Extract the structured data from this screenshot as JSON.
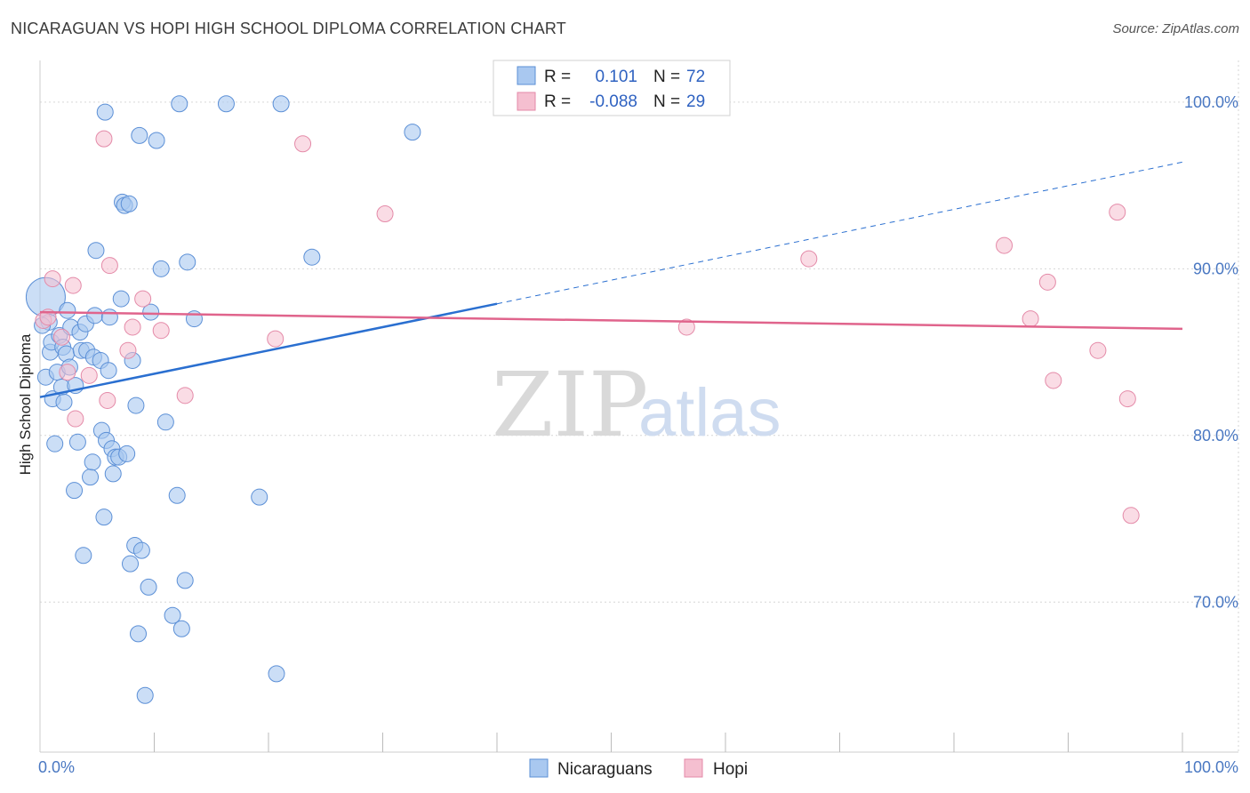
{
  "header": {
    "title": "NICARAGUAN VS HOPI HIGH SCHOOL DIPLOMA CORRELATION CHART",
    "source": "Source: ZipAtlas.com"
  },
  "watermark": {
    "zip": "ZIP",
    "atlas": "atlas"
  },
  "colors": {
    "blue_fill": "#a9c8f0",
    "blue_stroke": "#5b8fd6",
    "blue_line": "#2a6fd0",
    "pink_fill": "#f5bfd0",
    "pink_stroke": "#e48aa8",
    "pink_line": "#e0648c",
    "grid": "#d6d6d6",
    "tick_label": "#4a78c2"
  },
  "legend": {
    "rows": [
      {
        "r_label": "R = ",
        "r_value": "0.101",
        "n_label": "N = ",
        "n_value": "72"
      },
      {
        "r_label": "R = ",
        "r_value": "-0.088",
        "n_label": "N = ",
        "n_value": "29"
      }
    ]
  },
  "chart_data": {
    "type": "scatter",
    "title": "NICARAGUAN VS HOPI HIGH SCHOOL DIPLOMA CORRELATION CHART",
    "xlabel": "",
    "ylabel": "High School Diploma",
    "xlim": [
      0,
      100
    ],
    "ylim": [
      61.0,
      102.5
    ],
    "x_tick_labels": [
      "0.0%",
      "100.0%"
    ],
    "y_ticks": [
      70,
      80,
      90,
      100
    ],
    "y_tick_labels": [
      "70.0%",
      "80.0%",
      "90.0%",
      "100.0%"
    ],
    "series": [
      {
        "name": "Nicaraguans",
        "r": 0.101,
        "n": 72,
        "trend": {
          "x0": 0,
          "y0": 82.3,
          "x1": 40,
          "y1": 87.9,
          "dash_x1": 100,
          "dash_y1": 96.4
        },
        "points": [
          [
            0.5,
            88.3
          ],
          [
            0.5,
            83.5
          ],
          [
            0.8,
            86.8
          ],
          [
            0.9,
            85.0
          ],
          [
            1.0,
            85.6
          ],
          [
            1.1,
            82.2
          ],
          [
            1.3,
            79.5
          ],
          [
            1.5,
            83.8
          ],
          [
            1.7,
            86.0
          ],
          [
            1.9,
            82.9
          ],
          [
            2.0,
            85.3
          ],
          [
            2.1,
            82.0
          ],
          [
            2.3,
            84.9
          ],
          [
            2.4,
            87.5
          ],
          [
            2.6,
            84.1
          ],
          [
            2.7,
            86.5
          ],
          [
            3.0,
            76.7
          ],
          [
            3.1,
            83.0
          ],
          [
            3.3,
            79.6
          ],
          [
            3.5,
            86.2
          ],
          [
            3.6,
            85.1
          ],
          [
            3.8,
            72.8
          ],
          [
            4.0,
            86.7
          ],
          [
            4.1,
            85.1
          ],
          [
            4.4,
            77.5
          ],
          [
            4.6,
            78.4
          ],
          [
            4.7,
            84.7
          ],
          [
            4.8,
            87.2
          ],
          [
            4.9,
            91.1
          ],
          [
            5.3,
            84.5
          ],
          [
            5.4,
            80.3
          ],
          [
            5.6,
            75.1
          ],
          [
            5.7,
            99.4
          ],
          [
            5.8,
            79.7
          ],
          [
            6.0,
            83.9
          ],
          [
            6.1,
            87.1
          ],
          [
            6.3,
            79.2
          ],
          [
            6.4,
            77.7
          ],
          [
            6.6,
            78.7
          ],
          [
            6.9,
            78.7
          ],
          [
            7.1,
            88.2
          ],
          [
            7.2,
            94.0
          ],
          [
            7.4,
            93.8
          ],
          [
            7.6,
            78.9
          ],
          [
            7.8,
            93.9
          ],
          [
            7.9,
            72.3
          ],
          [
            8.1,
            84.5
          ],
          [
            8.3,
            73.4
          ],
          [
            8.4,
            81.8
          ],
          [
            8.6,
            68.1
          ],
          [
            8.7,
            98.0
          ],
          [
            8.9,
            73.1
          ],
          [
            9.2,
            64.4
          ],
          [
            9.5,
            70.9
          ],
          [
            9.7,
            87.4
          ],
          [
            10.2,
            97.7
          ],
          [
            10.6,
            90.0
          ],
          [
            11.0,
            80.8
          ],
          [
            11.6,
            69.2
          ],
          [
            12.0,
            76.4
          ],
          [
            12.2,
            99.9
          ],
          [
            12.4,
            68.4
          ],
          [
            12.7,
            71.3
          ],
          [
            12.9,
            90.4
          ],
          [
            13.5,
            87.0
          ],
          [
            16.3,
            99.9
          ],
          [
            19.2,
            76.3
          ],
          [
            20.7,
            65.7
          ],
          [
            21.1,
            99.9
          ],
          [
            23.8,
            90.7
          ],
          [
            32.6,
            98.2
          ],
          [
            0.2,
            86.6
          ]
        ]
      },
      {
        "name": "Hopi",
        "r": -0.088,
        "n": 29,
        "trend": {
          "x0": 0,
          "y0": 87.4,
          "x1": 100,
          "y1": 86.4
        },
        "points": [
          [
            0.3,
            86.9
          ],
          [
            0.7,
            87.1
          ],
          [
            1.1,
            89.4
          ],
          [
            1.9,
            85.9
          ],
          [
            2.4,
            83.8
          ],
          [
            2.9,
            89.0
          ],
          [
            3.1,
            81.0
          ],
          [
            4.3,
            83.6
          ],
          [
            5.6,
            97.8
          ],
          [
            5.9,
            82.1
          ],
          [
            6.1,
            90.2
          ],
          [
            7.7,
            85.1
          ],
          [
            8.1,
            86.5
          ],
          [
            9.0,
            88.2
          ],
          [
            10.6,
            86.3
          ],
          [
            12.7,
            82.4
          ],
          [
            20.6,
            85.8
          ],
          [
            23.0,
            97.5
          ],
          [
            30.2,
            93.3
          ],
          [
            56.6,
            86.5
          ],
          [
            67.3,
            90.6
          ],
          [
            84.4,
            91.4
          ],
          [
            86.7,
            87.0
          ],
          [
            88.2,
            89.2
          ],
          [
            88.7,
            83.3
          ],
          [
            92.6,
            85.1
          ],
          [
            94.3,
            93.4
          ],
          [
            95.2,
            82.2
          ],
          [
            95.5,
            75.2
          ]
        ]
      }
    ],
    "legend_entries": [
      "Nicaraguans",
      "Hopi"
    ]
  }
}
